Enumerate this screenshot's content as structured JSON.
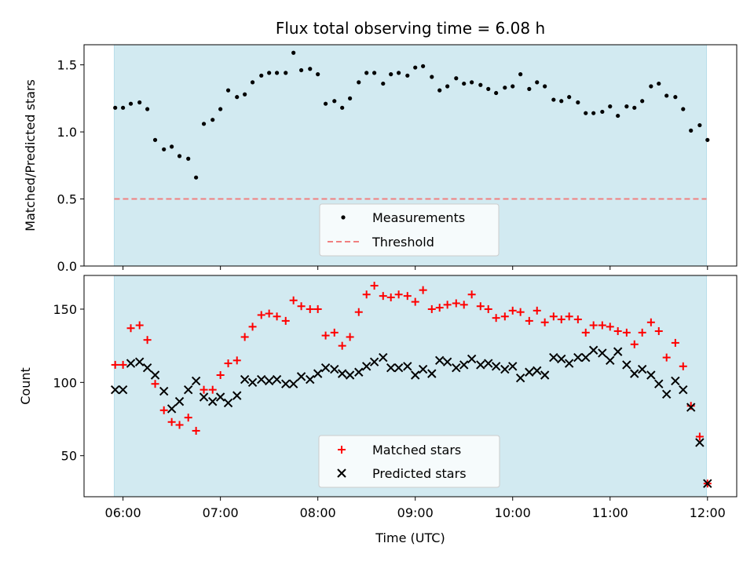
{
  "chart_data": [
    {
      "type": "scatter",
      "title": "Flux total observing time = 6.08 h",
      "xlabel": "",
      "ylabel": "Matched/Predicted stars",
      "xlim": [
        5.6,
        12.3
      ],
      "ylim": [
        0,
        1.65
      ],
      "yticks": [
        0.0,
        0.5,
        1.0,
        1.5
      ],
      "ytick_labels": [
        "0.0",
        "0.5",
        "1.0",
        "1.5"
      ],
      "shaded_span": [
        5.91,
        11.99
      ],
      "shade_color": "#add8e6",
      "threshold": {
        "name": "Threshold",
        "value": 0.5,
        "color": "#f08080",
        "style": "dashed"
      },
      "series": [
        {
          "name": "Measurements",
          "marker": "dot",
          "color": "#000000",
          "x": [
            5.92,
            6.0,
            6.08,
            6.17,
            6.25,
            6.33,
            6.42,
            6.5,
            6.58,
            6.67,
            6.75,
            6.83,
            6.92,
            7.0,
            7.08,
            7.17,
            7.25,
            7.33,
            7.42,
            7.5,
            7.58,
            7.67,
            7.75,
            7.83,
            7.92,
            8.0,
            8.08,
            8.17,
            8.25,
            8.33,
            8.42,
            8.5,
            8.58,
            8.67,
            8.75,
            8.83,
            8.92,
            9.0,
            9.08,
            9.17,
            9.25,
            9.33,
            9.42,
            9.5,
            9.58,
            9.67,
            9.75,
            9.83,
            9.92,
            10.0,
            10.08,
            10.17,
            10.25,
            10.33,
            10.42,
            10.5,
            10.58,
            10.67,
            10.75,
            10.83,
            10.92,
            11.0,
            11.08,
            11.17,
            11.25,
            11.33,
            11.42,
            11.5,
            11.58,
            11.67,
            11.75,
            11.83,
            11.92,
            12.0
          ],
          "values": [
            1.18,
            1.18,
            1.21,
            1.22,
            1.17,
            0.94,
            0.87,
            0.89,
            0.82,
            0.8,
            0.66,
            1.06,
            1.09,
            1.17,
            1.31,
            1.26,
            1.28,
            1.37,
            1.42,
            1.44,
            1.44,
            1.44,
            1.59,
            1.46,
            1.47,
            1.43,
            1.21,
            1.23,
            1.18,
            1.25,
            1.37,
            1.44,
            1.44,
            1.36,
            1.43,
            1.44,
            1.42,
            1.48,
            1.49,
            1.41,
            1.31,
            1.34,
            1.4,
            1.36,
            1.37,
            1.35,
            1.32,
            1.29,
            1.33,
            1.34,
            1.43,
            1.32,
            1.37,
            1.34,
            1.24,
            1.23,
            1.26,
            1.22,
            1.14,
            1.14,
            1.15,
            1.19,
            1.12,
            1.19,
            1.18,
            1.23,
            1.34,
            1.36,
            1.27,
            1.26,
            1.17,
            1.01,
            1.05,
            0.94
          ]
        }
      ],
      "legend": {
        "position": "lower center",
        "entries": [
          "Measurements",
          "Threshold"
        ]
      }
    },
    {
      "type": "scatter",
      "title": "",
      "xlabel": "Time (UTC)",
      "ylabel": "Count",
      "xlim": [
        5.6,
        12.3
      ],
      "ylim": [
        22,
        173
      ],
      "yticks": [
        50,
        100,
        150
      ],
      "ytick_labels": [
        "50",
        "100",
        "150"
      ],
      "xticks": [
        6,
        7,
        8,
        9,
        10,
        11,
        12
      ],
      "xtick_labels": [
        "06:00",
        "07:00",
        "08:00",
        "09:00",
        "10:00",
        "11:00",
        "12:00"
      ],
      "shaded_span": [
        5.91,
        11.99
      ],
      "shade_color": "#add8e6",
      "series": [
        {
          "name": "Matched stars",
          "marker": "plus",
          "color": "#ff0000",
          "x": [
            5.92,
            6.0,
            6.08,
            6.17,
            6.25,
            6.33,
            6.42,
            6.5,
            6.58,
            6.67,
            6.75,
            6.83,
            6.92,
            7.0,
            7.08,
            7.17,
            7.25,
            7.33,
            7.42,
            7.5,
            7.58,
            7.67,
            7.75,
            7.83,
            7.92,
            8.0,
            8.08,
            8.17,
            8.25,
            8.33,
            8.42,
            8.5,
            8.58,
            8.67,
            8.75,
            8.83,
            8.92,
            9.0,
            9.08,
            9.17,
            9.25,
            9.33,
            9.42,
            9.5,
            9.58,
            9.67,
            9.75,
            9.83,
            9.92,
            10.0,
            10.08,
            10.17,
            10.25,
            10.33,
            10.42,
            10.5,
            10.58,
            10.67,
            10.75,
            10.83,
            10.92,
            11.0,
            11.08,
            11.17,
            11.25,
            11.33,
            11.42,
            11.5,
            11.58,
            11.67,
            11.75,
            11.83,
            11.92,
            12.0
          ],
          "values": [
            112,
            112,
            137,
            139,
            129,
            99,
            81,
            73,
            71,
            76,
            67,
            95,
            95,
            105,
            113,
            115,
            131,
            138,
            146,
            147,
            145,
            142,
            156,
            152,
            150,
            150,
            132,
            134,
            125,
            131,
            148,
            160,
            166,
            159,
            158,
            160,
            159,
            155,
            163,
            150,
            151,
            153,
            154,
            153,
            160,
            152,
            150,
            144,
            145,
            149,
            148,
            142,
            149,
            141,
            145,
            143,
            145,
            143,
            134,
            139,
            139,
            138,
            135,
            134,
            126,
            134,
            141,
            135,
            117,
            127,
            111,
            84,
            63,
            31
          ]
        },
        {
          "name": "Predicted stars",
          "marker": "x",
          "color": "#000000",
          "x": [
            5.92,
            6.0,
            6.08,
            6.17,
            6.25,
            6.33,
            6.42,
            6.5,
            6.58,
            6.67,
            6.75,
            6.83,
            6.92,
            7.0,
            7.08,
            7.17,
            7.25,
            7.33,
            7.42,
            7.5,
            7.58,
            7.67,
            7.75,
            7.83,
            7.92,
            8.0,
            8.08,
            8.17,
            8.25,
            8.33,
            8.42,
            8.5,
            8.58,
            8.67,
            8.75,
            8.83,
            8.92,
            9.0,
            9.08,
            9.17,
            9.25,
            9.33,
            9.42,
            9.5,
            9.58,
            9.67,
            9.75,
            9.83,
            9.92,
            10.0,
            10.08,
            10.17,
            10.25,
            10.33,
            10.42,
            10.5,
            10.58,
            10.67,
            10.75,
            10.83,
            10.92,
            11.0,
            11.08,
            11.17,
            11.25,
            11.33,
            11.42,
            11.5,
            11.58,
            11.67,
            11.75,
            11.83,
            11.92,
            12.0
          ],
          "values": [
            95,
            95,
            113,
            114,
            110,
            105,
            94,
            82,
            87,
            95,
            101,
            90,
            87,
            90,
            86,
            91,
            102,
            100,
            102,
            101,
            102,
            99,
            99,
            104,
            102,
            106,
            110,
            109,
            106,
            105,
            107,
            111,
            114,
            117,
            110,
            110,
            111,
            105,
            109,
            106,
            115,
            114,
            110,
            112,
            116,
            112,
            113,
            111,
            109,
            111,
            103,
            107,
            108,
            105,
            117,
            116,
            113,
            117,
            117,
            122,
            120,
            115,
            121,
            112,
            106,
            109,
            105,
            99,
            92,
            101,
            95,
            83,
            59,
            31
          ]
        }
      ],
      "legend": {
        "position": "lower center",
        "entries": [
          "Matched stars",
          "Predicted stars"
        ]
      }
    }
  ]
}
